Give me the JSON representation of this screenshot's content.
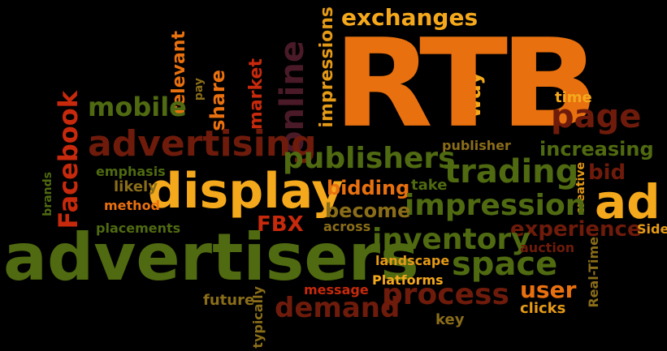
{
  "colors": {
    "background": "#000000",
    "orange": "#e8700f",
    "gold": "#f4a81c",
    "olive": "#4f6a11",
    "maroon": "#6e1b0b",
    "red": "#c6290c",
    "tan": "#8a6d19",
    "amber": "#e49a16",
    "plum": "#4a1a28"
  },
  "words": {
    "rtb": "RTB",
    "advertisers": "advertisers",
    "display": "display",
    "advertising": "advertising",
    "ad": "ad",
    "space": "space",
    "trading": "trading",
    "inventory": "inventory",
    "process": "process",
    "demand": "demand",
    "impression": "impression",
    "publishers": "publishers",
    "online": "online",
    "page": "page",
    "mobile": "mobile",
    "facebook": "Facebook",
    "exchanges": "exchanges",
    "impressions": "impressions",
    "increasing": "increasing",
    "experience": "experience",
    "user": "user",
    "way": "way",
    "market": "market",
    "relevant": "relevant",
    "share": "share",
    "pay": "pay",
    "bidding": "bidding",
    "become": "become",
    "bid": "bid",
    "time": "time",
    "publisher": "publisher",
    "take": "take",
    "creative": "creative",
    "emphasis": "emphasis",
    "likely": "likely",
    "method": "method",
    "brands": "brands",
    "placements": "placements",
    "fbx": "FBX",
    "across": "across",
    "landscape": "landscape",
    "auction": "auction",
    "side": "Side",
    "real_time": "Real-Time",
    "message": "message",
    "platforms": "Platforms",
    "clicks": "clicks",
    "future": "future",
    "typically": "typically",
    "key": "key"
  }
}
